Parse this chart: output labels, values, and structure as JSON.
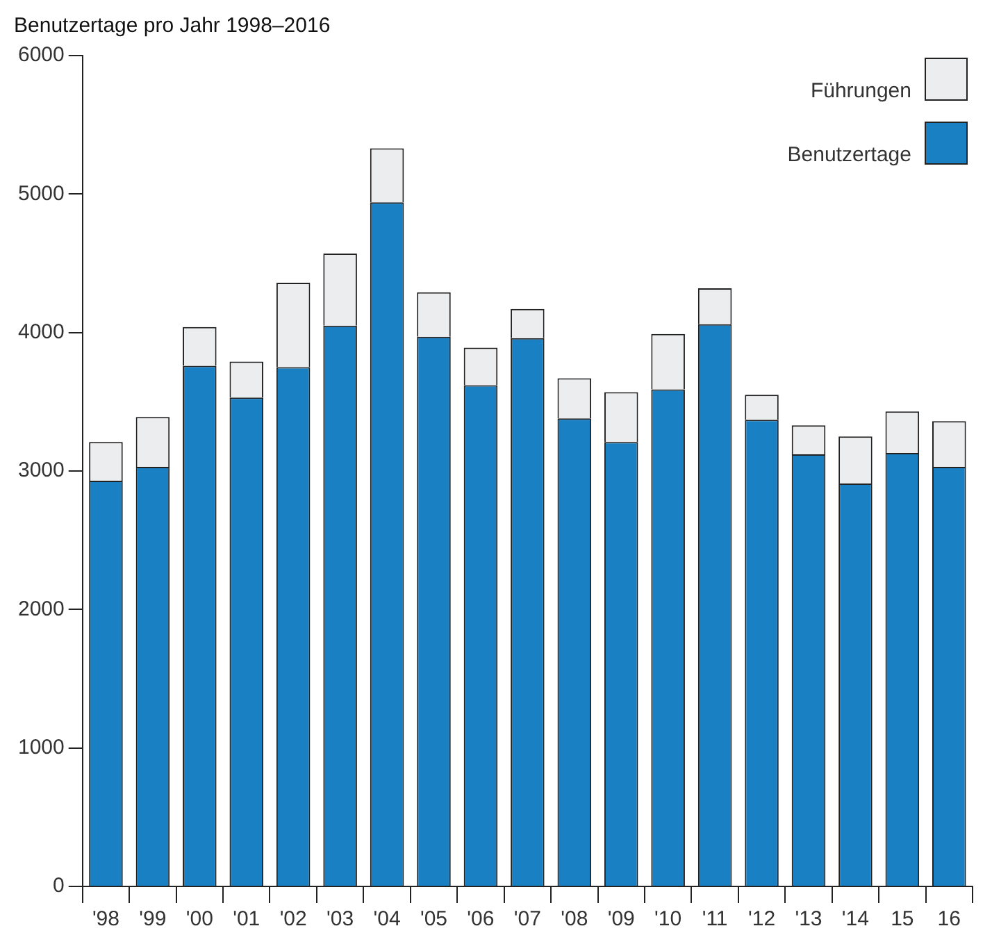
{
  "chart_data": {
    "type": "bar",
    "title": "Benutzertage pro Jahr 1998–2016",
    "stacked": true,
    "legend": "top right",
    "grid": false,
    "categories": [
      "'98",
      "'99",
      "'00",
      "'01",
      "'02",
      "'03",
      "'04",
      "'05",
      "'06",
      "'07",
      "'08",
      "'09",
      "'10",
      "'11",
      "'12",
      "'13",
      "'14",
      "15",
      "16"
    ],
    "ylim": [
      0,
      6000
    ],
    "yticks": [
      0,
      1000,
      2000,
      3000,
      4000,
      5000,
      6000
    ],
    "series": [
      {
        "name": "Benutzertage",
        "color": "#1a80c4",
        "values": [
          2930,
          3030,
          3760,
          3530,
          3750,
          4050,
          4940,
          3970,
          3620,
          3960,
          3380,
          3210,
          3590,
          4060,
          3370,
          3120,
          2910,
          3130,
          3030
        ]
      },
      {
        "name": "Führungen",
        "color": "#ecedef",
        "values": [
          280,
          360,
          280,
          260,
          610,
          520,
          390,
          320,
          270,
          210,
          290,
          360,
          400,
          260,
          180,
          210,
          340,
          300,
          330
        ]
      }
    ]
  }
}
